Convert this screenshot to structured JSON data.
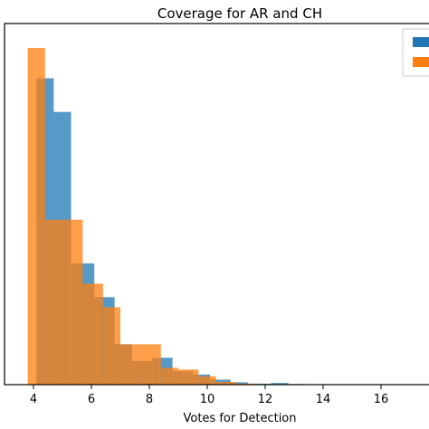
{
  "chart_data": {
    "type": "bar",
    "title": "Coverage for AR and CH",
    "xlabel": "Votes for Detection",
    "ylabel": "",
    "xlim": [
      3.0,
      18.0
    ],
    "ylim": [
      0,
      100
    ],
    "x_ticks": [
      4,
      6,
      8,
      10,
      12,
      14,
      16
    ],
    "x_tick_labels": [
      "4",
      "6",
      "8",
      "10",
      "12",
      "14",
      "16"
    ],
    "grid": false,
    "legend_position": "top-right",
    "series": [
      {
        "color": "#1f77b4",
        "bins": [
          4.1,
          4.7,
          5.3,
          6.1,
          6.8,
          7.4,
          8.1,
          8.8,
          9.5,
          10.1,
          10.8,
          11.4,
          12.2,
          12.8
        ],
        "values": [
          91,
          81,
          36,
          26,
          12,
          7,
          8,
          4,
          3,
          1.5,
          0.7,
          0.3,
          0.5,
          0.2
        ]
      },
      {
        "color": "#ff7f0e",
        "bins": [
          3.8,
          4.4,
          5.1,
          5.7,
          6.4,
          7.0,
          7.7,
          8.4,
          9.0,
          9.7,
          10.3,
          11.0
        ],
        "values": [
          100,
          49,
          49,
          30,
          23,
          12,
          12,
          5,
          4.5,
          2.5,
          0.8,
          0.3
        ]
      }
    ]
  }
}
